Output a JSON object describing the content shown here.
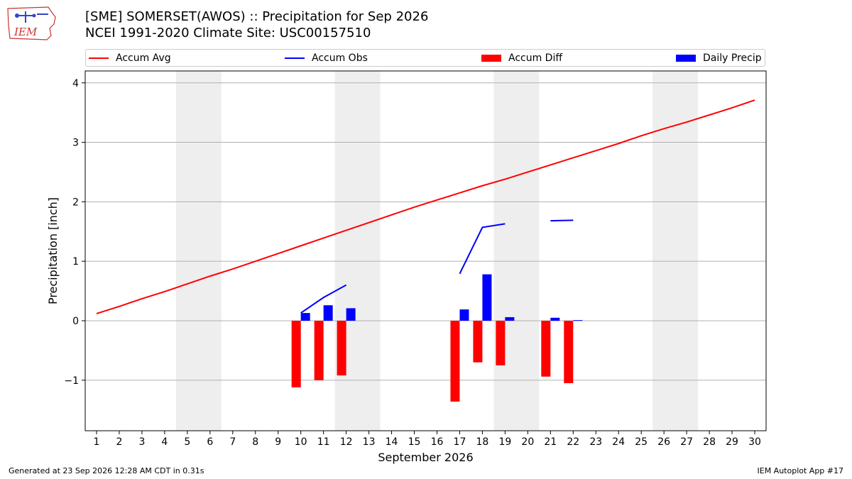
{
  "logo": {
    "text": "IEM"
  },
  "title": {
    "line1": "[SME] SOMERSET(AWOS) :: Precipitation for Sep 2026",
    "line2": "NCEI 1991-2020 Climate Site: USC00157510"
  },
  "footer": {
    "left": "Generated at 23 Sep 2026 12:28 AM CDT in 0.31s",
    "right": "IEM Autoplot App #17"
  },
  "colors": {
    "avg": "#ff0000",
    "obs": "#0000ff",
    "diff": "#ff0000",
    "daily": "#0000ff",
    "weekend": "#eeeeee",
    "grid": "#b0b0b0"
  },
  "chart_data": {
    "type": "bar",
    "xlabel": "September 2026",
    "ylabel": "Precipitation [inch]",
    "xlim": [
      0.5,
      30.5
    ],
    "ylim": [
      -1.85,
      4.2
    ],
    "yticks": [
      -1,
      0,
      1,
      2,
      3,
      4
    ],
    "ytick_labels": [
      "−1",
      "0",
      "1",
      "2",
      "3",
      "4"
    ],
    "x_ticks": [
      1,
      2,
      3,
      4,
      5,
      6,
      7,
      8,
      9,
      10,
      11,
      12,
      13,
      14,
      15,
      16,
      17,
      18,
      19,
      20,
      21,
      22,
      23,
      24,
      25,
      26,
      27,
      28,
      29,
      30
    ],
    "grid": "horizontal",
    "legend": {
      "placement": "top",
      "entries": [
        {
          "label": "Accum Avg",
          "kind": "line",
          "color": "#ff0000"
        },
        {
          "label": "Accum Obs",
          "kind": "line",
          "color": "#0000ff"
        },
        {
          "label": "Accum Diff",
          "kind": "bar",
          "color": "#ff0000"
        },
        {
          "label": "Daily Precip",
          "kind": "bar",
          "color": "#0000ff"
        }
      ]
    },
    "weekend_bands": [
      [
        4.5,
        6.5
      ],
      [
        11.5,
        13.5
      ],
      [
        18.5,
        20.5
      ],
      [
        25.5,
        27.5
      ]
    ],
    "series": [
      {
        "name": "Accum Avg",
        "type": "line",
        "x": [
          1,
          2,
          3,
          4,
          5,
          6,
          7,
          8,
          9,
          10,
          11,
          12,
          13,
          14,
          15,
          16,
          17,
          18,
          19,
          20,
          21,
          22,
          23,
          24,
          25,
          26,
          27,
          28,
          29,
          30
        ],
        "values": [
          0.12,
          0.24,
          0.37,
          0.49,
          0.62,
          0.75,
          0.87,
          1.0,
          1.13,
          1.26,
          1.39,
          1.52,
          1.65,
          1.78,
          1.91,
          2.03,
          2.15,
          2.27,
          2.38,
          2.5,
          2.62,
          2.74,
          2.86,
          2.98,
          3.11,
          3.23,
          3.34,
          3.46,
          3.58,
          3.71
        ]
      },
      {
        "name": "Accum Obs",
        "type": "line",
        "segments": [
          {
            "x": [
              10,
              11,
              12
            ],
            "values": [
              0.13,
              0.39,
              0.6
            ]
          },
          {
            "x": [
              17,
              18,
              19
            ],
            "values": [
              0.79,
              1.57,
              1.63
            ]
          },
          {
            "x": [
              21,
              22
            ],
            "values": [
              1.68,
              1.69
            ]
          }
        ]
      },
      {
        "name": "Accum Diff",
        "type": "bar",
        "x": [
          10,
          11,
          12,
          17,
          18,
          19,
          21,
          22
        ],
        "values": [
          -1.12,
          -1.0,
          -0.92,
          -1.36,
          -0.7,
          -0.75,
          -0.94,
          -1.05
        ]
      },
      {
        "name": "Daily Precip",
        "type": "bar",
        "x": [
          10,
          11,
          12,
          17,
          18,
          19,
          21,
          22
        ],
        "values": [
          0.13,
          0.26,
          0.21,
          0.19,
          0.78,
          0.06,
          0.05,
          0.01
        ]
      }
    ]
  }
}
